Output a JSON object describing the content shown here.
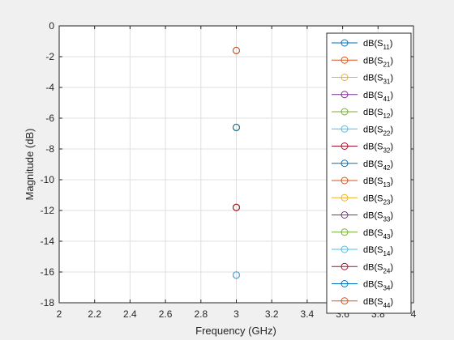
{
  "chart_data": {
    "type": "scatter",
    "xlabel": "Frequency (GHz)",
    "ylabel": "Magnitude (dB)",
    "xlim": [
      2,
      4
    ],
    "ylim": [
      -18,
      0
    ],
    "xticks": [
      "2",
      "2.2",
      "2.4",
      "2.6",
      "2.8",
      "3",
      "3.2",
      "3.4",
      "3.6",
      "3.8",
      "4"
    ],
    "yticks": [
      "0",
      "-2",
      "-4",
      "-6",
      "-8",
      "-10",
      "-12",
      "-14",
      "-16",
      "-18"
    ],
    "grid": true,
    "legend_position": "right",
    "series": [
      {
        "name": "dB(S11)",
        "prefix": "dB(S",
        "sub": "11",
        "suffix": ")",
        "color": "#0072BD",
        "x": 3,
        "y": -1.6
      },
      {
        "name": "dB(S21)",
        "prefix": "dB(S",
        "sub": "21",
        "suffix": ")",
        "color": "#D95319",
        "x": 3,
        "y": -6.6
      },
      {
        "name": "dB(S31)",
        "prefix": "dB(S",
        "sub": "31",
        "suffix": ")",
        "color": "#EDB120",
        "x": 3,
        "y": -11.8
      },
      {
        "name": "dB(S41)",
        "prefix": "dB(S",
        "sub": "41",
        "suffix": ")",
        "color": "#7E2F8E",
        "x": 3,
        "y": -16.2
      },
      {
        "name": "dB(S12)",
        "prefix": "dB(S",
        "sub": "12",
        "suffix": ")",
        "color": "#77AC30",
        "x": 3,
        "y": -6.6
      },
      {
        "name": "dB(S22)",
        "prefix": "dB(S",
        "sub": "22",
        "suffix": ")",
        "color": "#4DBEEE",
        "x": 3,
        "y": -16.2
      },
      {
        "name": "dB(S32)",
        "prefix": "dB(S",
        "sub": "32",
        "suffix": ")",
        "color": "#A2142F",
        "x": 3,
        "y": -11.8
      },
      {
        "name": "dB(S42)",
        "prefix": "dB(S",
        "sub": "42",
        "suffix": ")",
        "color": "#0072BD",
        "x": 3,
        "y": -11.8
      },
      {
        "name": "dB(S13)",
        "prefix": "dB(S",
        "sub": "13",
        "suffix": ")",
        "color": "#D95319",
        "x": 3,
        "y": -11.8
      },
      {
        "name": "dB(S23)",
        "prefix": "dB(S",
        "sub": "23",
        "suffix": ")",
        "color": "#EDB120",
        "x": 3,
        "y": -11.8
      },
      {
        "name": "dB(S33)",
        "prefix": "dB(S",
        "sub": "33",
        "suffix": ")",
        "color": "#7E2F8E",
        "x": 3,
        "y": -16.2
      },
      {
        "name": "dB(S43)",
        "prefix": "dB(S",
        "sub": "43",
        "suffix": ")",
        "color": "#77AC30",
        "x": 3,
        "y": -6.6
      },
      {
        "name": "dB(S14)",
        "prefix": "dB(S",
        "sub": "14",
        "suffix": ")",
        "color": "#4DBEEE",
        "x": 3,
        "y": -16.2
      },
      {
        "name": "dB(S24)",
        "prefix": "dB(S",
        "sub": "24",
        "suffix": ")",
        "color": "#A2142F",
        "x": 3,
        "y": -11.8
      },
      {
        "name": "dB(S34)",
        "prefix": "dB(S",
        "sub": "34",
        "suffix": ")",
        "color": "#0072BD",
        "x": 3,
        "y": -6.6
      },
      {
        "name": "dB(S44)",
        "prefix": "dB(S",
        "sub": "44",
        "suffix": ")",
        "color": "#D95319",
        "x": 3,
        "y": -1.6
      }
    ]
  }
}
